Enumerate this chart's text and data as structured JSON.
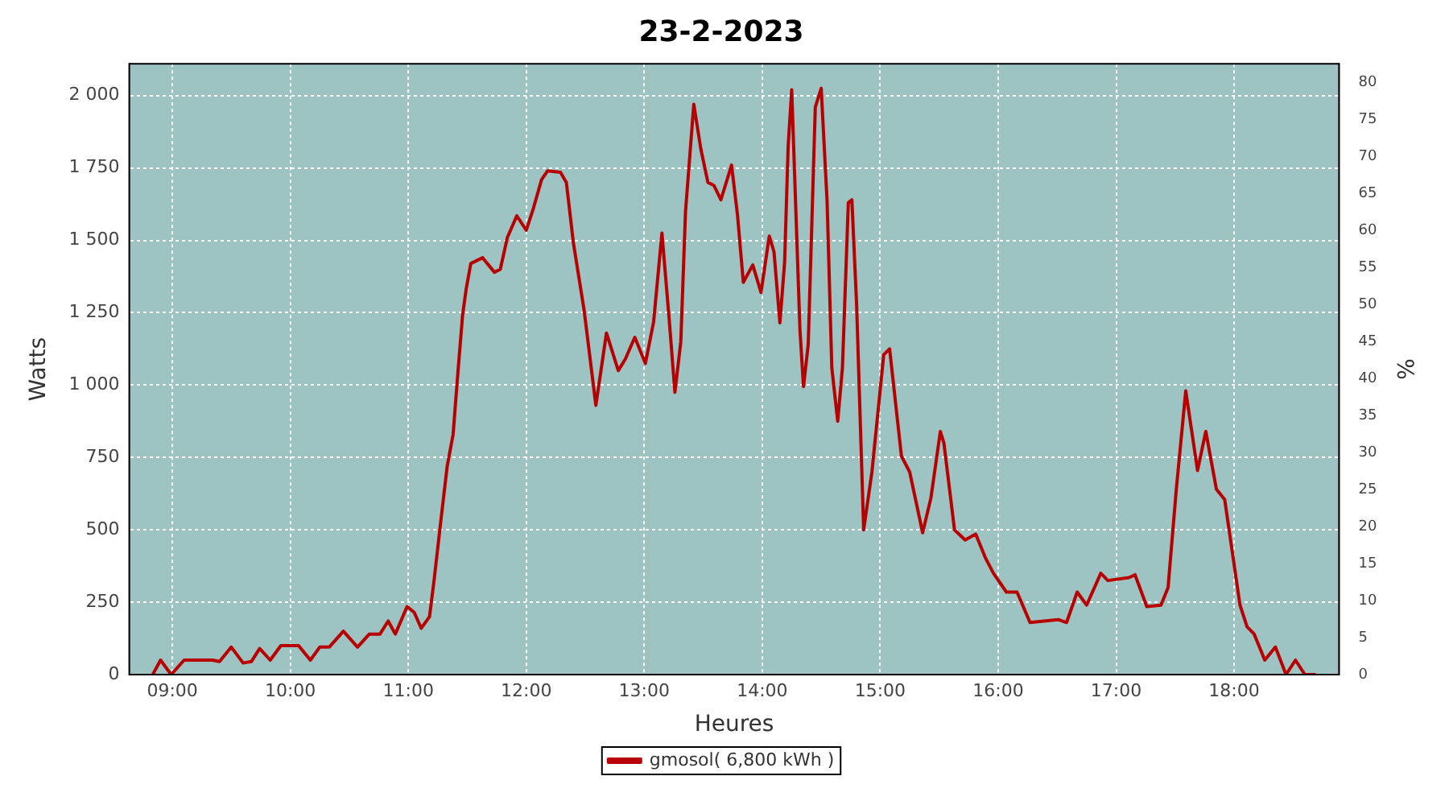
{
  "chart_data": {
    "type": "line",
    "title": "23-2-2023",
    "xlabel": "Heures",
    "ylabel": "Watts",
    "y2label": "%",
    "xlim": [
      8.635,
      18.89
    ],
    "xticks": [
      {
        "value": 9,
        "label": "09:00"
      },
      {
        "value": 10,
        "label": "10:00"
      },
      {
        "value": 11,
        "label": "11:00"
      },
      {
        "value": 12,
        "label": "12:00"
      },
      {
        "value": 13,
        "label": "13:00"
      },
      {
        "value": 14,
        "label": "14:00"
      },
      {
        "value": 15,
        "label": "15:00"
      },
      {
        "value": 16,
        "label": "16:00"
      },
      {
        "value": 17,
        "label": "17:00"
      },
      {
        "value": 18,
        "label": "18:00"
      }
    ],
    "ylim": [
      0,
      2110
    ],
    "yticks": [
      0,
      250,
      500,
      750,
      {
        "value": 1000,
        "label": "1 000"
      },
      {
        "value": 1250,
        "label": "1 250"
      },
      {
        "value": 1500,
        "label": "1 500"
      },
      {
        "value": 1750,
        "label": "1 750"
      },
      {
        "value": 2000,
        "label": "2 000"
      }
    ],
    "y2lim": [
      0,
      82.5
    ],
    "y2ticks": [
      0,
      5,
      10,
      15,
      20,
      25,
      30,
      35,
      40,
      45,
      50,
      55,
      60,
      65,
      70,
      75,
      80
    ],
    "grid": true,
    "legend": "bottom",
    "marker": "none",
    "line_style": "solid",
    "series": [
      {
        "name": "gmosol( 6,800 kWh )",
        "color": "#b80000",
        "x": [
          8.834,
          8.9,
          8.99,
          9.1,
          9.34,
          9.4,
          9.5,
          9.6,
          9.67,
          9.74,
          9.83,
          9.92,
          10.07,
          10.17,
          10.25,
          10.33,
          10.45,
          10.57,
          10.67,
          10.76,
          10.83,
          10.89,
          10.99,
          11.05,
          11.11,
          11.18,
          11.22,
          11.27,
          11.33,
          11.38,
          11.42,
          11.46,
          11.49,
          11.53,
          11.63,
          11.73,
          11.78,
          11.84,
          11.92,
          12.0,
          12.06,
          12.13,
          12.18,
          12.29,
          12.34,
          12.4,
          12.49,
          12.59,
          12.68,
          12.78,
          12.84,
          12.92,
          13.01,
          13.08,
          13.15,
          13.21,
          13.26,
          13.31,
          13.35,
          13.42,
          13.48,
          13.54,
          13.59,
          13.65,
          13.74,
          13.79,
          13.84,
          13.92,
          13.99,
          14.06,
          14.1,
          14.15,
          14.19,
          14.22,
          14.25,
          14.32,
          14.35,
          14.39,
          14.45,
          14.5,
          14.55,
          14.59,
          14.64,
          14.68,
          14.73,
          14.76,
          14.8,
          14.86,
          14.93,
          15.03,
          15.08,
          15.18,
          15.25,
          15.36,
          15.43,
          15.51,
          15.54,
          15.63,
          15.72,
          15.81,
          15.89,
          15.96,
          16.07,
          16.16,
          16.27,
          16.51,
          16.58,
          16.67,
          16.75,
          16.87,
          16.93,
          17.11,
          17.16,
          17.26,
          17.38,
          17.44,
          17.51,
          17.59,
          17.69,
          17.76,
          17.85,
          17.92,
          18.05,
          18.11,
          18.17,
          18.26,
          18.35,
          18.44,
          18.52,
          18.6,
          18.69
        ],
        "values": [
          0,
          50,
          0,
          50,
          50,
          45,
          95,
          40,
          45,
          90,
          50,
          100,
          100,
          50,
          95,
          95,
          150,
          95,
          140,
          140,
          185,
          140,
          235,
          215,
          160,
          200,
          330,
          510,
          720,
          830,
          1040,
          1240,
          1330,
          1420,
          1440,
          1390,
          1400,
          1510,
          1585,
          1535,
          1610,
          1710,
          1740,
          1735,
          1700,
          1490,
          1260,
          930,
          1180,
          1050,
          1090,
          1165,
          1075,
          1220,
          1525,
          1235,
          975,
          1150,
          1600,
          1970,
          1815,
          1700,
          1690,
          1640,
          1760,
          1590,
          1355,
          1415,
          1320,
          1515,
          1460,
          1215,
          1425,
          1825,
          2020,
          1190,
          995,
          1140,
          1960,
          2025,
          1635,
          1060,
          875,
          1060,
          1630,
          1640,
          1280,
          500,
          700,
          1105,
          1125,
          755,
          700,
          490,
          610,
          840,
          800,
          500,
          465,
          485,
          405,
          350,
          285,
          285,
          180,
          190,
          180,
          285,
          240,
          350,
          325,
          335,
          345,
          235,
          240,
          300,
          640,
          980,
          705,
          840,
          640,
          605,
          240,
          165,
          140,
          50,
          95,
          0,
          50,
          0,
          0
        ]
      }
    ]
  }
}
